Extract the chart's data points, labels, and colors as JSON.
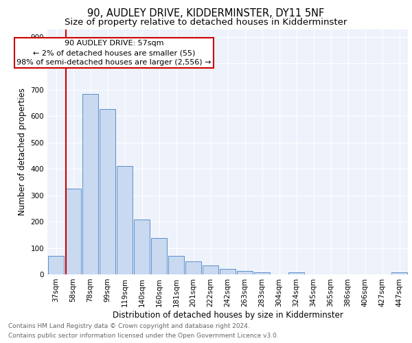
{
  "title1": "90, AUDLEY DRIVE, KIDDERMINSTER, DY11 5NF",
  "title2": "Size of property relative to detached houses in Kidderminster",
  "xlabel": "Distribution of detached houses by size in Kidderminster",
  "ylabel": "Number of detached properties",
  "categories": [
    "37sqm",
    "58sqm",
    "78sqm",
    "99sqm",
    "119sqm",
    "140sqm",
    "160sqm",
    "181sqm",
    "201sqm",
    "222sqm",
    "242sqm",
    "263sqm",
    "283sqm",
    "304sqm",
    "324sqm",
    "345sqm",
    "365sqm",
    "386sqm",
    "406sqm",
    "427sqm",
    "447sqm"
  ],
  "values": [
    70,
    325,
    685,
    628,
    412,
    208,
    137,
    70,
    50,
    35,
    22,
    12,
    8,
    0,
    7,
    0,
    0,
    0,
    0,
    0,
    7
  ],
  "bar_color": "#c8d9f0",
  "bar_edge_color": "#5b8fc9",
  "background_color": "#eef2fb",
  "grid_color": "#ffffff",
  "annotation_text": "90 AUDLEY DRIVE: 57sqm\n← 2% of detached houses are smaller (55)\n98% of semi-detached houses are larger (2,556) →",
  "annotation_box_color": "#ffffff",
  "annotation_box_edge": "#cc0000",
  "vline_color": "#cc0000",
  "ylim": [
    0,
    930
  ],
  "yticks": [
    0,
    100,
    200,
    300,
    400,
    500,
    600,
    700,
    800,
    900
  ],
  "footer_line1": "Contains HM Land Registry data © Crown copyright and database right 2024.",
  "footer_line2": "Contains public sector information licensed under the Open Government Licence v3.0.",
  "title1_fontsize": 10.5,
  "title2_fontsize": 9.5,
  "xlabel_fontsize": 8.5,
  "ylabel_fontsize": 8.5,
  "tick_fontsize": 7.5,
  "annotation_fontsize": 8,
  "footer_fontsize": 6.5
}
